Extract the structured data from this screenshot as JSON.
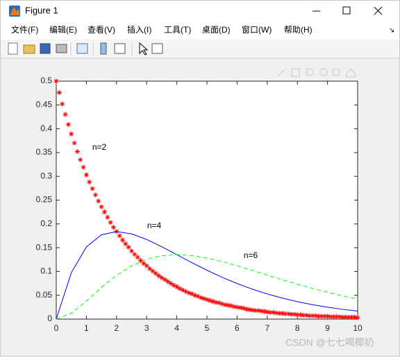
{
  "window": {
    "title": "Figure 1",
    "menu": [
      "文件(F)",
      "编辑(E)",
      "查看(V)",
      "插入(I)",
      "工具(T)",
      "桌面(D)",
      "窗口(W)",
      "帮助(H)"
    ]
  },
  "watermark": "CSDN @七七喝椰奶",
  "chart_data": {
    "type": "line",
    "annotations": [
      "n=2",
      "n=4",
      "n=6"
    ],
    "series": [
      {
        "color": "#ff0000",
        "marker": "*",
        "linestyle": "none",
        "x": [
          0,
          0.1,
          0.2,
          0.3,
          0.4,
          0.5,
          0.6,
          0.7,
          0.8,
          0.9,
          1,
          1.1,
          1.2,
          1.3,
          1.4,
          1.5,
          1.6,
          1.7,
          1.8,
          1.9,
          2,
          2.1,
          2.2,
          2.3,
          2.4,
          2.5,
          2.6,
          2.7,
          2.8,
          2.9,
          3,
          3.1,
          3.2,
          3.3,
          3.4,
          3.5,
          3.6,
          3.7,
          3.8,
          3.9,
          4,
          4.1,
          4.2,
          4.3,
          4.4,
          4.5,
          4.6,
          4.7,
          4.8,
          4.9,
          5,
          5.1,
          5.2,
          5.3,
          5.4,
          5.5,
          5.6,
          5.7,
          5.8,
          5.9,
          6,
          6.1,
          6.2,
          6.3,
          6.4,
          6.5,
          6.6,
          6.7,
          6.8,
          6.9,
          7,
          7.1,
          7.2,
          7.3,
          7.4,
          7.5,
          7.6,
          7.7,
          7.8,
          7.9,
          8,
          8.1,
          8.2,
          8.3,
          8.4,
          8.5,
          8.6,
          8.7,
          8.8,
          8.9,
          9,
          9.1,
          9.2,
          9.3,
          9.4,
          9.5,
          9.6,
          9.7,
          9.8,
          9.9,
          10
        ],
        "values": [
          0.5,
          0.476,
          0.452,
          0.43,
          0.409,
          0.389,
          0.37,
          0.352,
          0.335,
          0.319,
          0.303,
          0.288,
          0.274,
          0.261,
          0.248,
          0.236,
          0.225,
          0.214,
          0.203,
          0.193,
          0.184,
          0.175,
          0.166,
          0.158,
          0.151,
          0.143,
          0.136,
          0.13,
          0.123,
          0.117,
          0.112,
          0.106,
          0.101,
          0.096,
          0.091,
          0.087,
          0.083,
          0.079,
          0.075,
          0.071,
          0.068,
          0.064,
          0.061,
          0.058,
          0.055,
          0.053,
          0.05,
          0.048,
          0.045,
          0.043,
          0.041,
          0.039,
          0.037,
          0.035,
          0.034,
          0.032,
          0.03,
          0.029,
          0.028,
          0.026,
          0.025,
          0.024,
          0.023,
          0.021,
          0.02,
          0.019,
          0.018,
          0.018,
          0.017,
          0.016,
          0.015,
          0.014,
          0.014,
          0.013,
          0.012,
          0.012,
          0.011,
          0.011,
          0.01,
          0.01,
          0.009,
          0.009,
          0.008,
          0.008,
          0.007,
          0.007,
          0.007,
          0.006,
          0.006,
          0.006,
          0.006,
          0.005,
          0.005,
          0.005,
          0.005,
          0.004,
          0.004,
          0.004,
          0.004,
          0.004,
          0.003
        ]
      },
      {
        "color": "#0000ff",
        "marker": "none",
        "linestyle": "solid",
        "x": [
          0,
          0.5,
          1,
          1.5,
          2,
          2.5,
          3,
          3.5,
          4,
          4.5,
          5,
          5.5,
          6,
          6.5,
          7,
          7.5,
          8,
          8.5,
          9,
          9.5,
          10
        ],
        "values": [
          0,
          0.0974,
          0.1516,
          0.1771,
          0.1839,
          0.1791,
          0.1673,
          0.1521,
          0.1353,
          0.1186,
          0.1026,
          0.0879,
          0.0747,
          0.063,
          0.0528,
          0.0441,
          0.0366,
          0.0303,
          0.025,
          0.0205,
          0.0168
        ]
      },
      {
        "color": "#00ff00",
        "marker": "none",
        "linestyle": "dashed",
        "x": [
          0,
          0.5,
          1,
          1.5,
          2,
          2.5,
          3,
          3.5,
          4,
          4.5,
          5,
          5.5,
          6,
          6.5,
          7,
          7.5,
          8,
          8.5,
          9,
          9.5,
          10
        ],
        "values": [
          0,
          0.0122,
          0.0379,
          0.0664,
          0.092,
          0.1119,
          0.1255,
          0.1331,
          0.1353,
          0.1334,
          0.1283,
          0.1209,
          0.1121,
          0.1024,
          0.0924,
          0.0827,
          0.0732,
          0.0644,
          0.0563,
          0.0487,
          0.042
        ]
      }
    ],
    "xlim": [
      0,
      10
    ],
    "xticks": [
      0,
      1,
      2,
      3,
      4,
      5,
      6,
      7,
      8,
      9,
      10
    ],
    "ylim": [
      0,
      0.5
    ],
    "yticks": [
      0,
      0.05,
      0.1,
      0.15,
      0.2,
      0.25,
      0.3,
      0.35,
      0.4,
      0.45,
      0.5
    ],
    "grid": false,
    "box": true
  }
}
